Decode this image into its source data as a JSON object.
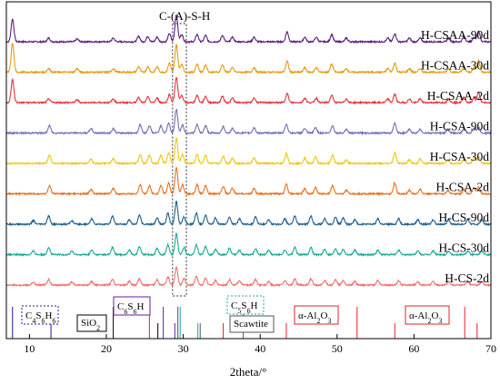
{
  "chart_data": {
    "type": "line",
    "title": "",
    "xlabel": "2theta/°",
    "ylabel": "",
    "xlim": [
      7,
      70
    ],
    "x_ticks": [
      "10",
      "20",
      "30",
      "40",
      "50",
      "60",
      "70"
    ],
    "top_annotation": "C-(A)-S-H",
    "highlight_band": [
      28.6,
      30.4
    ],
    "series": [
      {
        "name": "H-CSAA-90d",
        "color": "#5c1f7f",
        "peaks": [
          [
            7.8,
            25
          ],
          [
            12.5,
            4
          ],
          [
            16.2,
            3
          ],
          [
            20.9,
            4
          ],
          [
            24.2,
            6
          ],
          [
            25.4,
            6
          ],
          [
            26.6,
            5
          ],
          [
            28.2,
            9
          ],
          [
            29.1,
            30
          ],
          [
            29.8,
            8
          ],
          [
            31.8,
            8
          ],
          [
            32.9,
            7
          ],
          [
            35.1,
            7
          ],
          [
            36.4,
            5
          ],
          [
            39.2,
            5
          ],
          [
            43.5,
            11
          ],
          [
            45.8,
            5
          ],
          [
            47.3,
            5
          ],
          [
            49.3,
            8
          ],
          [
            51.2,
            4
          ],
          [
            56.6,
            4
          ],
          [
            57.5,
            9
          ],
          [
            59.4,
            4
          ],
          [
            60.8,
            4
          ],
          [
            64.5,
            4
          ],
          [
            66.5,
            6
          ],
          [
            67.8,
            5
          ],
          [
            68.4,
            12
          ]
        ]
      },
      {
        "name": "H-CSAA-30d",
        "color": "#e79a12",
        "peaks": [
          [
            7.8,
            32
          ],
          [
            12.5,
            4
          ],
          [
            16.2,
            4
          ],
          [
            20.9,
            4
          ],
          [
            24.2,
            6
          ],
          [
            25.4,
            6
          ],
          [
            26.6,
            6
          ],
          [
            28.2,
            10
          ],
          [
            29.1,
            30
          ],
          [
            29.8,
            9
          ],
          [
            31.8,
            9
          ],
          [
            32.9,
            8
          ],
          [
            35.1,
            8
          ],
          [
            36.4,
            5
          ],
          [
            39.2,
            5
          ],
          [
            43.5,
            12
          ],
          [
            45.8,
            5
          ],
          [
            47.3,
            5
          ],
          [
            49.3,
            9
          ],
          [
            51.2,
            4
          ],
          [
            56.6,
            4
          ],
          [
            57.5,
            10
          ],
          [
            59.4,
            4
          ],
          [
            60.8,
            4
          ],
          [
            64.5,
            4
          ],
          [
            66.5,
            6
          ],
          [
            67.8,
            5
          ],
          [
            68.4,
            13
          ]
        ]
      },
      {
        "name": "H-CSAA-2d",
        "color": "#e8343c",
        "peaks": [
          [
            7.8,
            25
          ],
          [
            12.5,
            4
          ],
          [
            16.2,
            3
          ],
          [
            20.9,
            4
          ],
          [
            24.2,
            6
          ],
          [
            25.4,
            6
          ],
          [
            26.6,
            5
          ],
          [
            28.2,
            9
          ],
          [
            29.1,
            28
          ],
          [
            29.8,
            8
          ],
          [
            31.8,
            8
          ],
          [
            32.9,
            7
          ],
          [
            35.1,
            7
          ],
          [
            36.4,
            5
          ],
          [
            39.2,
            5
          ],
          [
            43.5,
            10
          ],
          [
            45.8,
            5
          ],
          [
            47.3,
            5
          ],
          [
            49.3,
            8
          ],
          [
            51.2,
            4
          ],
          [
            56.6,
            4
          ],
          [
            57.5,
            9
          ],
          [
            59.4,
            4
          ],
          [
            60.8,
            4
          ],
          [
            64.5,
            4
          ],
          [
            66.5,
            6
          ],
          [
            67.8,
            5
          ],
          [
            68.4,
            11
          ]
        ]
      },
      {
        "name": "H-CSA-90d",
        "color": "#7070b8",
        "peaks": [
          [
            12.6,
            8
          ],
          [
            18.0,
            5
          ],
          [
            20.9,
            5
          ],
          [
            24.4,
            9
          ],
          [
            25.6,
            8
          ],
          [
            27.1,
            8
          ],
          [
            28.1,
            11
          ],
          [
            29.1,
            26
          ],
          [
            29.9,
            9
          ],
          [
            31.8,
            9
          ],
          [
            32.9,
            8
          ],
          [
            35.2,
            7
          ],
          [
            36.4,
            5
          ],
          [
            39.2,
            6
          ],
          [
            43.4,
            10
          ],
          [
            45.8,
            5
          ],
          [
            47.2,
            6
          ],
          [
            49.4,
            8
          ],
          [
            51.2,
            4
          ],
          [
            57.5,
            11
          ],
          [
            59.4,
            4
          ],
          [
            60.8,
            4
          ],
          [
            64.4,
            4
          ],
          [
            66.5,
            5
          ],
          [
            67.8,
            6
          ],
          [
            68.4,
            6
          ]
        ]
      },
      {
        "name": "H-CSA-30d",
        "color": "#f1c40f",
        "peaks": [
          [
            12.6,
            9
          ],
          [
            18.0,
            5
          ],
          [
            20.9,
            5
          ],
          [
            24.4,
            10
          ],
          [
            25.6,
            9
          ],
          [
            27.1,
            9
          ],
          [
            28.1,
            12
          ],
          [
            29.1,
            28
          ],
          [
            29.9,
            10
          ],
          [
            31.8,
            10
          ],
          [
            32.9,
            9
          ],
          [
            35.2,
            8
          ],
          [
            36.4,
            6
          ],
          [
            39.2,
            6
          ],
          [
            43.4,
            11
          ],
          [
            45.8,
            6
          ],
          [
            47.2,
            7
          ],
          [
            49.4,
            9
          ],
          [
            51.2,
            4
          ],
          [
            57.5,
            12
          ],
          [
            59.4,
            4
          ],
          [
            60.8,
            5
          ],
          [
            64.4,
            4
          ],
          [
            66.5,
            5
          ],
          [
            67.8,
            7
          ],
          [
            68.4,
            7
          ]
        ]
      },
      {
        "name": "H-CSA-2d",
        "color": "#e8701e",
        "peaks": [
          [
            12.6,
            9
          ],
          [
            18.0,
            5
          ],
          [
            20.9,
            6
          ],
          [
            24.4,
            10
          ],
          [
            25.6,
            9
          ],
          [
            27.1,
            9
          ],
          [
            28.1,
            12
          ],
          [
            29.1,
            29
          ],
          [
            29.9,
            10
          ],
          [
            31.8,
            10
          ],
          [
            32.9,
            9
          ],
          [
            35.2,
            8
          ],
          [
            36.4,
            6
          ],
          [
            39.2,
            6
          ],
          [
            43.4,
            11
          ],
          [
            45.8,
            6
          ],
          [
            47.2,
            7
          ],
          [
            49.4,
            9
          ],
          [
            51.2,
            4
          ],
          [
            57.5,
            12
          ],
          [
            59.4,
            4
          ],
          [
            60.8,
            5
          ],
          [
            64.4,
            4
          ],
          [
            66.5,
            5
          ],
          [
            67.8,
            7
          ],
          [
            68.4,
            7
          ]
        ]
      },
      {
        "name": "H-CS-90d",
        "color": "#1f5f8b",
        "peaks": [
          [
            10.5,
            4
          ],
          [
            12.5,
            9
          ],
          [
            15.5,
            4
          ],
          [
            18.1,
            6
          ],
          [
            20.8,
            9
          ],
          [
            23.0,
            5
          ],
          [
            24.3,
            10
          ],
          [
            26.6,
            7
          ],
          [
            28.0,
            12
          ],
          [
            29.1,
            25
          ],
          [
            30.1,
            8
          ],
          [
            31.7,
            12
          ],
          [
            32.9,
            10
          ],
          [
            34.2,
            7
          ],
          [
            36.0,
            8
          ],
          [
            37.3,
            6
          ],
          [
            39.4,
            8
          ],
          [
            41.1,
            5
          ],
          [
            43.2,
            6
          ],
          [
            44.5,
            9
          ],
          [
            46.6,
            9
          ],
          [
            48.4,
            6
          ],
          [
            49.8,
            8
          ],
          [
            50.8,
            7
          ],
          [
            52.3,
            5
          ],
          [
            55.3,
            6
          ],
          [
            58.0,
            6
          ],
          [
            60.5,
            5
          ],
          [
            62.5,
            5
          ],
          [
            64.5,
            5
          ],
          [
            67.0,
            5
          ],
          [
            68.8,
            5
          ]
        ]
      },
      {
        "name": "H-CS-30d",
        "color": "#1aa89a",
        "peaks": [
          [
            10.5,
            4
          ],
          [
            12.5,
            8
          ],
          [
            15.5,
            4
          ],
          [
            18.1,
            5
          ],
          [
            20.8,
            8
          ],
          [
            23.0,
            5
          ],
          [
            24.3,
            9
          ],
          [
            26.6,
            7
          ],
          [
            28.0,
            11
          ],
          [
            29.1,
            23
          ],
          [
            30.1,
            8
          ],
          [
            31.7,
            11
          ],
          [
            32.9,
            9
          ],
          [
            34.2,
            6
          ],
          [
            36.0,
            7
          ],
          [
            37.3,
            5
          ],
          [
            39.4,
            7
          ],
          [
            41.1,
            5
          ],
          [
            43.2,
            5
          ],
          [
            44.5,
            8
          ],
          [
            46.6,
            8
          ],
          [
            48.4,
            6
          ],
          [
            49.8,
            7
          ],
          [
            50.8,
            6
          ],
          [
            52.3,
            5
          ],
          [
            55.3,
            5
          ],
          [
            58.0,
            5
          ],
          [
            60.5,
            4
          ],
          [
            62.5,
            4
          ],
          [
            64.5,
            4
          ],
          [
            67.0,
            4
          ],
          [
            68.8,
            4
          ]
        ]
      },
      {
        "name": "H-CS-2d",
        "color": "#f07070",
        "peaks": [
          [
            10.5,
            3
          ],
          [
            12.5,
            6
          ],
          [
            15.5,
            3
          ],
          [
            18.1,
            4
          ],
          [
            20.8,
            6
          ],
          [
            23.0,
            4
          ],
          [
            24.3,
            7
          ],
          [
            26.6,
            6
          ],
          [
            28.0,
            9
          ],
          [
            29.1,
            20
          ],
          [
            30.1,
            7
          ],
          [
            31.7,
            10
          ],
          [
            32.9,
            8
          ],
          [
            34.2,
            5
          ],
          [
            36.0,
            6
          ],
          [
            37.3,
            5
          ],
          [
            39.4,
            6
          ],
          [
            41.1,
            4
          ],
          [
            43.2,
            5
          ],
          [
            44.5,
            7
          ],
          [
            46.6,
            7
          ],
          [
            48.4,
            5
          ],
          [
            49.8,
            6
          ],
          [
            50.8,
            5
          ],
          [
            52.3,
            4
          ],
          [
            55.3,
            5
          ],
          [
            58.0,
            5
          ],
          [
            60.5,
            4
          ],
          [
            62.5,
            4
          ],
          [
            64.5,
            4
          ],
          [
            67.0,
            4
          ],
          [
            68.8,
            4
          ]
        ]
      }
    ],
    "reference_phases": [
      {
        "label": "C4S6H6",
        "color": "#1a1aa0",
        "positions": [
          7.8,
          12.8
        ]
      },
      {
        "label": "SiO2",
        "color": "#000000",
        "positions": [
          20.9,
          26.7
        ]
      },
      {
        "label": "C6S6H",
        "color": "#6a1b9a",
        "positions": [
          27.4,
          28.9
        ]
      },
      {
        "label": "C5S6H",
        "color": "#17a2b8",
        "positions": [
          29.6,
          31.9
        ]
      },
      {
        "label": "Scawtite",
        "color": "#555555",
        "positions": [
          29.3,
          32.2
        ]
      },
      {
        "label": "α-Al2O3",
        "color": "#e8202a",
        "positions": [
          25.6,
          35.2,
          37.8,
          43.4,
          52.6,
          57.5,
          66.6,
          68.2
        ]
      }
    ],
    "phase_labels": [
      {
        "base": "C",
        "s1": "4",
        "mid": "S",
        "s2": "6",
        "end": "H",
        "s3": "6"
      },
      {
        "base": "SiO",
        "s1": "2"
      },
      {
        "base": "C",
        "s1": "6",
        "mid": "S",
        "s2": "6",
        "end": "H"
      },
      {
        "base": "C",
        "s1": "5",
        "mid": "S",
        "s2": "6",
        "end": "H"
      },
      {
        "base": "Scawtite"
      },
      {
        "base": "α-Al",
        "s1": "2",
        "mid": "O",
        "s2": "3"
      },
      {
        "base": "α-Al",
        "s1": "2",
        "mid": "O",
        "s2": "3"
      }
    ],
    "colors": {
      "phase_box_blue": "#1a1aa0",
      "phase_box_purple": "#6a1b9a",
      "phase_box_cyan": "#17a2b8",
      "phase_box_gray": "#555555",
      "phase_box_red": "#e8202a",
      "band": "#555555"
    }
  }
}
